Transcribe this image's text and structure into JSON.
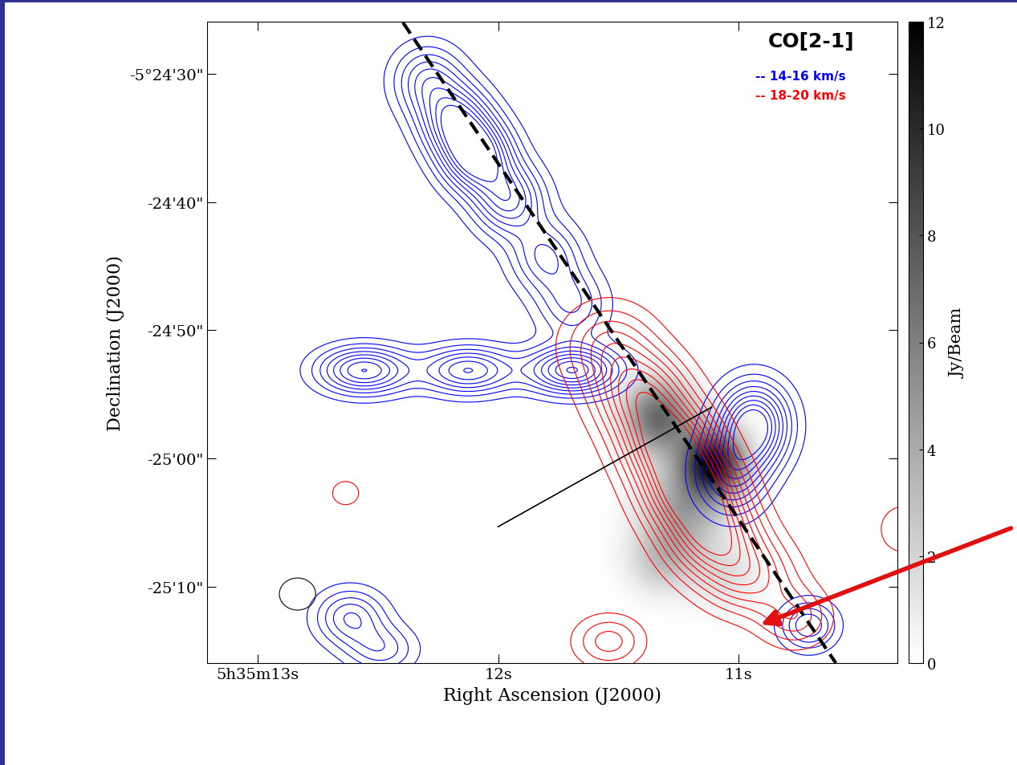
{
  "chart_data": {
    "type": "contour",
    "title": "CO[2-1]",
    "x_label": "Right Ascension (J2000)",
    "y_label": "Declination (J2000)",
    "xlim": [
      13.21,
      10.34
    ],
    "ylim": [
      -15.94,
      34.06
    ],
    "xticks": [
      {
        "value": 13,
        "label": "5h35m13s"
      },
      {
        "value": 12,
        "label": "12s"
      },
      {
        "value": 11,
        "label": "11s"
      }
    ],
    "yticks": [
      {
        "value": 30,
        "label": "-5°24'30\""
      },
      {
        "value": 20,
        "label": "-24'40\""
      },
      {
        "value": 10,
        "label": "-24'50\""
      },
      {
        "value": 0,
        "label": "-25'00\""
      },
      {
        "value": -10,
        "label": "-25'10\""
      }
    ],
    "image": {
      "components": [
        {
          "x": 11.106,
          "y": -0.375,
          "peak": 11,
          "sigma_x": 0.094,
          "sigma_y": 1.9
        },
        {
          "x": 11.332,
          "y": 3.25,
          "peak": 7,
          "sigma_x": 0.1,
          "sigma_y": 2.0
        },
        {
          "x": 11.238,
          "y": -4.25,
          "peak": 4,
          "sigma_x": 0.12,
          "sigma_y": 2.5
        },
        {
          "x": 11.313,
          "y": -8.0,
          "peak": 2.5,
          "sigma_x": 0.1,
          "sigma_y": 1.8
        },
        {
          "x": 11.049,
          "y": -9.25,
          "peak": 1.5,
          "sigma_x": 0.1,
          "sigma_y": 1.8
        }
      ]
    },
    "colorbar": {
      "label": "Jy/Beam",
      "range": [
        0,
        12
      ],
      "ticks": [
        0,
        2,
        4,
        6,
        8,
        10,
        12
      ]
    },
    "series": [
      {
        "name": "-- 14-16 km/s",
        "color": "blue",
        "levels": [
          0.1,
          0.2,
          0.3,
          0.4,
          0.5,
          0.6,
          0.7,
          0.8,
          0.9
        ],
        "components": [
          {
            "x": 12.294,
            "y": 29.5,
            "peak": 0.5,
            "sigma_x": 0.1,
            "sigma_y": 1.9
          },
          {
            "x": 12.181,
            "y": 26.375,
            "peak": 0.8,
            "sigma_x": 0.1,
            "sigma_y": 1.9
          },
          {
            "x": 12.087,
            "y": 23.56,
            "peak": 1.0,
            "sigma_x": 0.1,
            "sigma_y": 1.9
          },
          {
            "x": 11.955,
            "y": 20.125,
            "peak": 0.7,
            "sigma_x": 0.1,
            "sigma_y": 1.9
          },
          {
            "x": 11.804,
            "y": 15.75,
            "peak": 0.5,
            "sigma_x": 0.1,
            "sigma_y": 1.9
          },
          {
            "x": 11.691,
            "y": 12.0,
            "peak": 0.4,
            "sigma_x": 0.1,
            "sigma_y": 1.9
          },
          {
            "x": 12.558,
            "y": 6.875,
            "peak": 0.8,
            "sigma_x": 0.13,
            "sigma_y": 1.25
          },
          {
            "x": 12.125,
            "y": 6.875,
            "peak": 0.7,
            "sigma_x": 0.13,
            "sigma_y": 1.25
          },
          {
            "x": 11.691,
            "y": 6.875,
            "peak": 0.9,
            "sigma_x": 0.13,
            "sigma_y": 1.25
          },
          {
            "x": 10.936,
            "y": 2.625,
            "peak": 1.0,
            "sigma_x": 0.1,
            "sigma_y": 2.2
          },
          {
            "x": 11.03,
            "y": -1.125,
            "peak": 0.6,
            "sigma_x": 0.1,
            "sigma_y": 2.2
          },
          {
            "x": 10.709,
            "y": -13.0,
            "peak": 0.5,
            "sigma_x": 0.08,
            "sigma_y": 1.3
          },
          {
            "x": 12.615,
            "y": -12.375,
            "peak": 0.5,
            "sigma_x": 0.1,
            "sigma_y": 1.5
          },
          {
            "x": 12.483,
            "y": -14.875,
            "peak": 0.35,
            "sigma_x": 0.1,
            "sigma_y": 1.3
          }
        ]
      },
      {
        "name": "-- 18-20 km/s",
        "color": "red",
        "levels": [
          0.1,
          0.2,
          0.3,
          0.4,
          0.5,
          0.6,
          0.7,
          0.8,
          0.9
        ],
        "components": [
          {
            "x": 11.54,
            "y": 8.875,
            "peak": 0.4,
            "sigma_x": 0.13,
            "sigma_y": 2.2
          },
          {
            "x": 11.408,
            "y": 5.125,
            "peak": 0.7,
            "sigma_x": 0.13,
            "sigma_y": 2.2
          },
          {
            "x": 11.294,
            "y": 1.375,
            "peak": 0.9,
            "sigma_x": 0.13,
            "sigma_y": 2.2
          },
          {
            "x": 11.2,
            "y": -2.375,
            "peak": 1.0,
            "sigma_x": 0.13,
            "sigma_y": 2.2
          },
          {
            "x": 11.106,
            "y": -6.125,
            "peak": 0.8,
            "sigma_x": 0.13,
            "sigma_y": 2.2
          },
          {
            "x": 10.955,
            "y": -9.25,
            "peak": 0.5,
            "sigma_x": 0.13,
            "sigma_y": 2.0
          },
          {
            "x": 10.766,
            "y": -12.375,
            "peak": 0.35,
            "sigma_x": 0.1,
            "sigma_y": 1.6
          },
          {
            "x": 11.54,
            "y": -14.25,
            "peak": 0.35,
            "sigma_x": 0.1,
            "sigma_y": 1.4
          },
          {
            "x": 10.313,
            "y": -5.5,
            "peak": 0.2,
            "sigma_x": 0.08,
            "sigma_y": 1.5
          },
          {
            "x": 12.634,
            "y": -2.69,
            "peak": 0.15,
            "sigma_x": 0.06,
            "sigma_y": 1.0
          }
        ]
      }
    ],
    "lines": [
      {
        "x": [
          12.396,
          10.596
        ],
        "y": [
          34.0,
          -15.94
        ],
        "line_style": "dashed",
        "color": "black"
      },
      {
        "x": [
          12.0,
          11.113
        ],
        "y": [
          -5.31,
          4.0
        ],
        "line_style": "solid",
        "color": "black"
      }
    ],
    "beam": {
      "x": 12.834,
      "y": -10.56,
      "width": 0.151,
      "height": 2.5
    }
  }
}
